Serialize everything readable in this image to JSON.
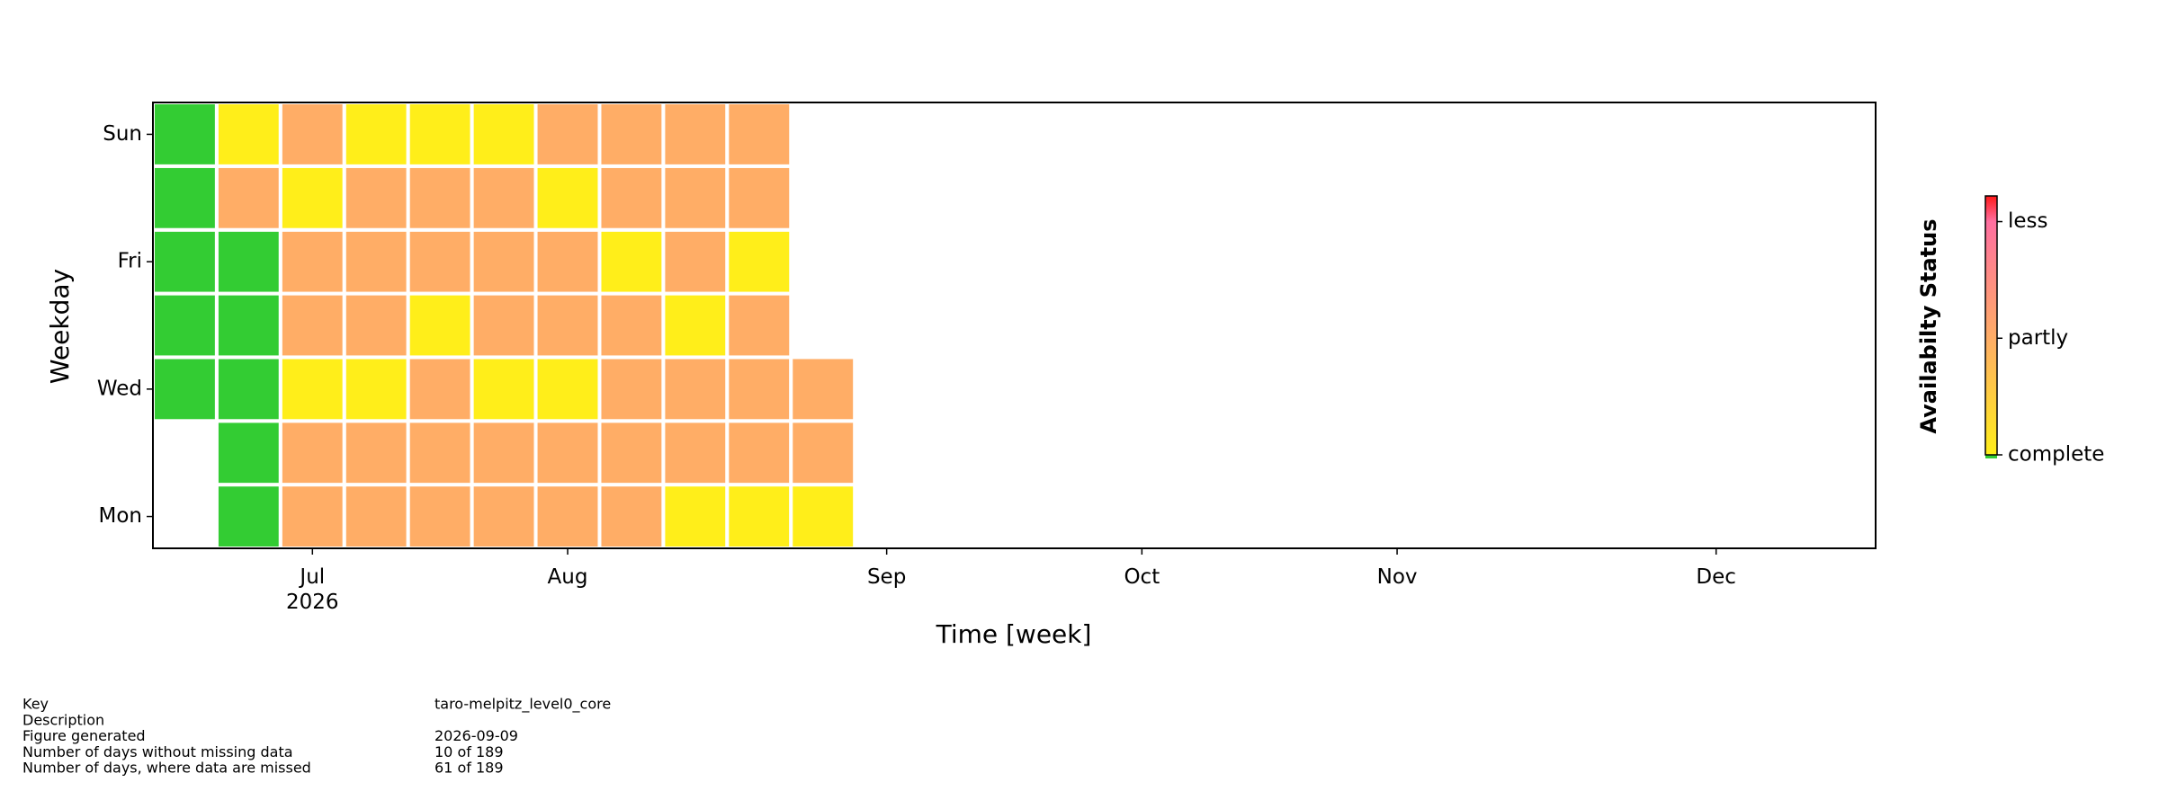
{
  "chart_data": {
    "type": "calendar-heatmap",
    "xlabel": "Time [week]",
    "ylabel": "Weekday",
    "xlim": [
      -0.5,
      26.5
    ],
    "xticks": [
      {
        "value": 2,
        "label": "Jul\n2026"
      },
      {
        "value": 6,
        "label": "Aug"
      },
      {
        "value": 11,
        "label": "Sep"
      },
      {
        "value": 15,
        "label": "Oct"
      },
      {
        "value": 19,
        "label": "Nov"
      },
      {
        "value": 24,
        "label": "Dec"
      }
    ],
    "y": [
      "Mon",
      null,
      "Wed",
      null,
      "Fri",
      null,
      "Sun"
    ],
    "values": [
      [
        null,
        -1,
        0.5,
        0.5,
        0.5,
        0.5,
        0.5,
        0.5,
        0,
        0,
        0
      ],
      [
        null,
        -1,
        0.5,
        0.5,
        0.5,
        0.5,
        0.5,
        0.5,
        0.5,
        0.5,
        0.5
      ],
      [
        -1,
        -1,
        0,
        0,
        0.5,
        0,
        0,
        0.5,
        0.5,
        0.5,
        0.5
      ],
      [
        -1,
        -1,
        0.5,
        0.5,
        0,
        0.5,
        0.5,
        0.5,
        0,
        0.5,
        null
      ],
      [
        -1,
        -1,
        0.5,
        0.5,
        0.5,
        0.5,
        0.5,
        0,
        0.5,
        0,
        null
      ],
      [
        -1,
        0.5,
        0,
        0.5,
        0.5,
        0.5,
        0,
        0.5,
        0.5,
        0.5,
        null
      ],
      [
        -1,
        0,
        0.5,
        0,
        0,
        0,
        0.5,
        0.5,
        0.5,
        0.5,
        null
      ]
    ],
    "colorbar_label": "Availabilty Status",
    "zlim": [
      0,
      1.11
    ],
    "zticks": [
      {
        "value": 0,
        "label": "complete"
      },
      {
        "value": 0.5,
        "label": "partly"
      },
      {
        "value": 1,
        "label": "less"
      }
    ],
    "colormap": [
      {
        "value": 0,
        "color": "#ffee1a"
      },
      {
        "value": 0.5,
        "color": "#ffad66"
      },
      {
        "value": 1,
        "color": "#ff6fa0"
      },
      {
        "value": 1.11,
        "color": "#ff1a1a"
      }
    ],
    "under_color": "#33cc33"
  },
  "info": [
    {
      "label": "Key",
      "value": "taro-melpitz_level0_core"
    },
    {
      "label": "Description"
    },
    {
      "label": "Figure generated",
      "value": "2026-09-09"
    },
    {
      "label": "Number of days without missing data",
      "value": "10 of 189"
    },
    {
      "label": "Number of days, where data are missed",
      "value": "61 of 189"
    }
  ]
}
